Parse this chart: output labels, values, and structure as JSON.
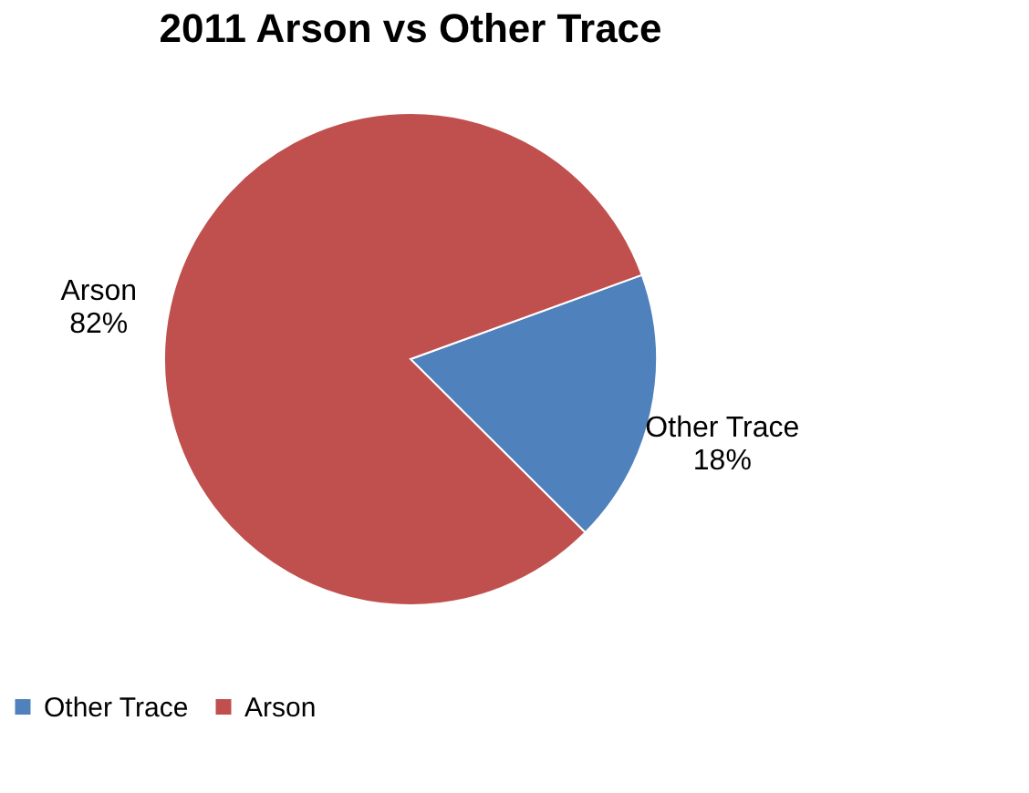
{
  "chart_data": {
    "type": "pie",
    "title": "2011 Arson vs Other Trace",
    "categories": [
      "Other Trace",
      "Arson"
    ],
    "values": [
      18,
      82
    ],
    "colors": [
      "#4f81bd",
      "#c0504d"
    ],
    "value_labels": [
      "18%",
      "82%"
    ],
    "legend": "bottom"
  }
}
